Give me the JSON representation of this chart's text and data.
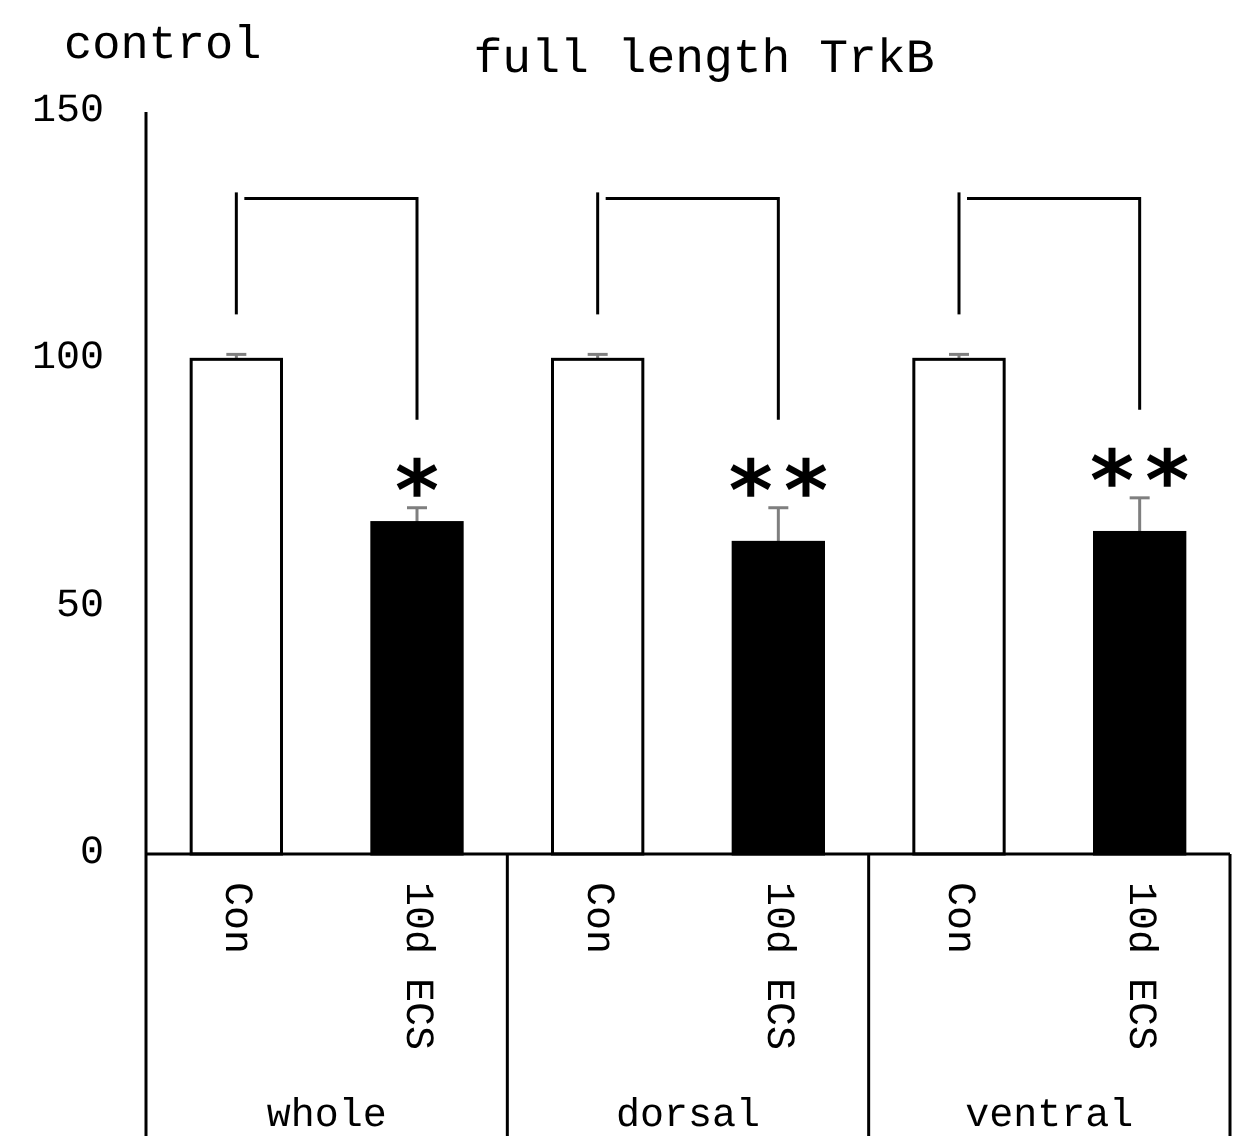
{
  "chart_data": {
    "type": "bar",
    "title": "full length TrkB",
    "ylabel": "control",
    "categories": [
      "whole",
      "dorsal",
      "ventral"
    ],
    "series": [
      {
        "name": "Con",
        "color": "#ffffff",
        "values": [
          100,
          100,
          100
        ],
        "errors": [
          1,
          1,
          1
        ]
      },
      {
        "name": "10d ECS",
        "color": "#000000",
        "values": [
          67,
          63,
          65
        ],
        "errors": [
          3,
          7,
          7
        ]
      }
    ],
    "ylim": [
      0,
      150
    ],
    "yticks": [
      0,
      50,
      100,
      150
    ],
    "annotations": [
      "*",
      "* *",
      "* *"
    ]
  }
}
